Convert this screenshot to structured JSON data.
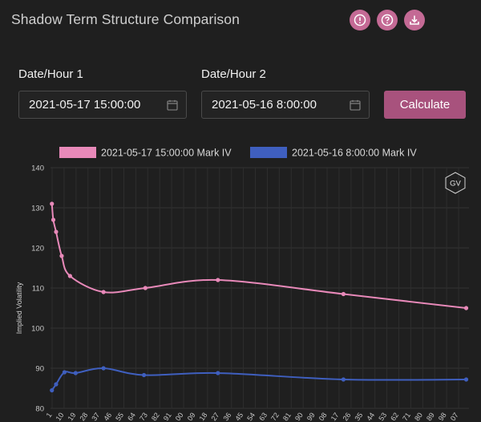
{
  "header": {
    "title": "Shadow Term Structure Comparison",
    "icons": [
      "alert-icon",
      "help-icon",
      "download-icon"
    ]
  },
  "form": {
    "date1_label": "Date/Hour 1",
    "date1_value": "2021-05-17 15:00:00",
    "date2_label": "Date/Hour 2",
    "date2_value": "2021-05-16 8:00:00",
    "calculate_label": "Calculate"
  },
  "colors": {
    "accent": "#c46a95",
    "button": "#a8527d",
    "series1": "#e889b9",
    "series2": "#3f5fbf"
  },
  "badge": "GV",
  "chart_data": {
    "type": "line",
    "ylabel": "Implied Volatility",
    "xlabel": "",
    "ylim": [
      80,
      140
    ],
    "yticks": [
      80,
      90,
      100,
      110,
      120,
      130,
      140
    ],
    "xticks": [
      "1",
      "10",
      "19",
      "28",
      "37",
      "46",
      "55",
      "64",
      "73",
      "82",
      "91",
      "00",
      "09",
      "18",
      "27",
      "36",
      "45",
      "54",
      "63",
      "72",
      "81",
      "90",
      "99",
      "08",
      "17",
      "26",
      "35",
      "44",
      "53",
      "62",
      "71",
      "80",
      "89",
      "98",
      "07"
    ],
    "legend_position": "top",
    "series": [
      {
        "name": "2021-05-17 15:00:00 Mark IV",
        "color": "#e889b9",
        "x": [
          1,
          2,
          4,
          8,
          14,
          38,
          68,
          120,
          210,
          298
        ],
        "y": [
          131,
          127,
          124,
          118,
          113,
          109,
          110,
          112,
          108.5,
          105
        ]
      },
      {
        "name": "2021-05-16 8:00:00 Mark IV",
        "color": "#3f5fbf",
        "x": [
          1,
          4,
          10,
          18,
          38,
          67,
          120,
          210,
          298
        ],
        "y": [
          84.5,
          86,
          89,
          88.8,
          90,
          88.3,
          88.8,
          87.2,
          87.2
        ]
      }
    ]
  }
}
